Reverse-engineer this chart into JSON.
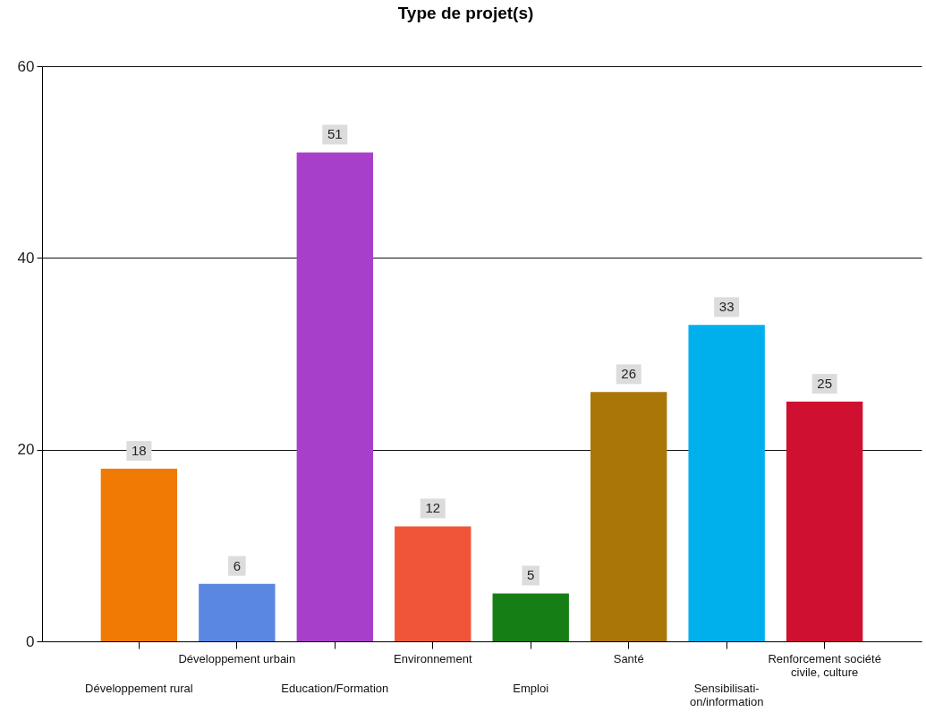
{
  "chart_data": {
    "type": "bar",
    "title": "Type de projet(s)",
    "categories": [
      "Développement rural",
      "Développement urbain",
      "Education/Formation",
      "Environnement",
      "Emploi",
      "Santé",
      "Sensibilisati-\non/information",
      "Renforcement société\ncivile, culture"
    ],
    "values": [
      18,
      6,
      51,
      12,
      5,
      26,
      33,
      25
    ],
    "colors": [
      "#f07a04",
      "#5a87e2",
      "#a83fca",
      "#f05538",
      "#157f15",
      "#aa7608",
      "#00b0ec",
      "#d01030"
    ],
    "ylim": [
      0,
      60
    ],
    "yticks": [
      0,
      20,
      40,
      60
    ],
    "grid": "y",
    "data_labels": true
  }
}
